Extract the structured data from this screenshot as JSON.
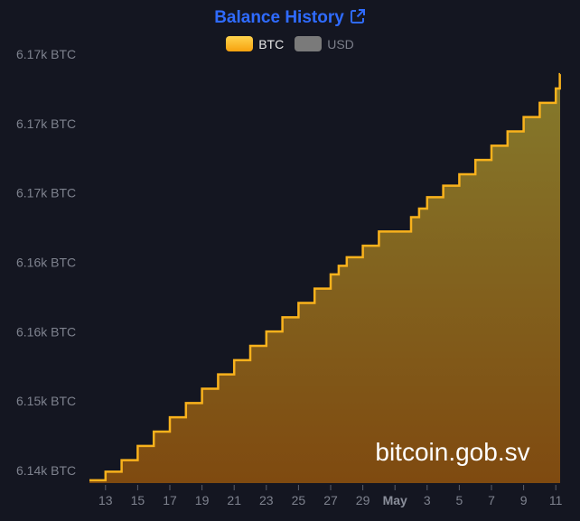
{
  "header": {
    "title": "Balance History",
    "link_icon": "external-link-icon"
  },
  "legend": [
    {
      "name": "BTC",
      "color": "#f9b21c",
      "active": true
    },
    {
      "name": "USD",
      "color": "#7a7a7a",
      "active": false
    }
  ],
  "watermark": "bitcoin.gob.sv",
  "chart_data": {
    "type": "area",
    "step": true,
    "xlabel": "",
    "ylabel": "",
    "y_tick_labels": [
      "6.17k BTC",
      "6.17k BTC",
      "6.17k BTC",
      "6.16k BTC",
      "6.16k BTC",
      "6.15k BTC",
      "6.14k BTC"
    ],
    "x_tick_labels": [
      "13",
      "15",
      "17",
      "19",
      "21",
      "23",
      "25",
      "27",
      "29",
      "May",
      "3",
      "5",
      "7",
      "9",
      "11"
    ],
    "x_tick_dates": [
      "2024-04-13",
      "2024-04-15",
      "2024-04-17",
      "2024-04-19",
      "2024-04-21",
      "2024-04-23",
      "2024-04-25",
      "2024-04-27",
      "2024-04-29",
      "2024-05-01",
      "2024-05-03",
      "2024-05-05",
      "2024-05-07",
      "2024-05-09",
      "2024-05-11"
    ],
    "x_range": [
      "2024-04-12",
      "2024-05-11"
    ],
    "ylim": [
      6143.4,
      6173.4
    ],
    "grid": false,
    "legend_position": "top",
    "series": [
      {
        "name": "BTC",
        "color": "#f9b21c",
        "points": [
          [
            "2024-04-12",
            6143.6
          ],
          [
            "2024-04-13",
            6144.2
          ],
          [
            "2024-04-14",
            6145.0
          ],
          [
            "2024-04-15",
            6146.0
          ],
          [
            "2024-04-16",
            6147.0
          ],
          [
            "2024-04-17",
            6148.0
          ],
          [
            "2024-04-18",
            6149.0
          ],
          [
            "2024-04-19",
            6150.0
          ],
          [
            "2024-04-20",
            6151.0
          ],
          [
            "2024-04-21",
            6152.0
          ],
          [
            "2024-04-22",
            6153.0
          ],
          [
            "2024-04-23",
            6154.0
          ],
          [
            "2024-04-24",
            6155.0
          ],
          [
            "2024-04-25",
            6156.0
          ],
          [
            "2024-04-26",
            6157.0
          ],
          [
            "2024-04-27",
            6158.0
          ],
          [
            "2024-04-27T12:00",
            6158.6
          ],
          [
            "2024-04-28",
            6159.2
          ],
          [
            "2024-04-29",
            6160.0
          ],
          [
            "2024-04-30",
            6161.0
          ],
          [
            "2024-05-02",
            6162.0
          ],
          [
            "2024-05-02T12:00",
            6162.6
          ],
          [
            "2024-05-03",
            6163.4
          ],
          [
            "2024-05-04",
            6164.2
          ],
          [
            "2024-05-05",
            6165.0
          ],
          [
            "2024-05-06",
            6166.0
          ],
          [
            "2024-05-07",
            6167.0
          ],
          [
            "2024-05-08",
            6168.0
          ],
          [
            "2024-05-09",
            6169.0
          ],
          [
            "2024-05-10",
            6170.0
          ],
          [
            "2024-05-11",
            6171.0
          ],
          [
            "2024-05-11T06:00",
            6172.0
          ]
        ]
      }
    ]
  }
}
